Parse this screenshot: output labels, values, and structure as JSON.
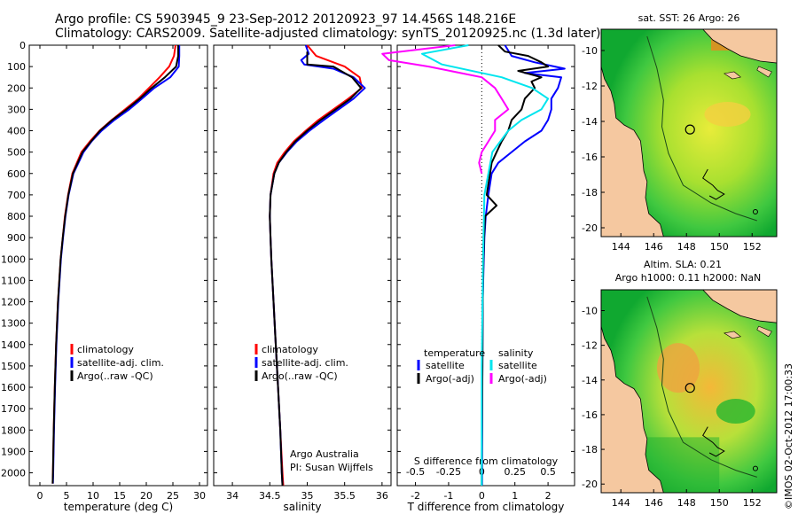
{
  "header": {
    "line1": "Argo profile: CS 5903945_9 23-Sep-2012 20120923_97 14.456S 148.216E",
    "line2": "Climatology: CARS2009. Satellite-adjusted climatology: synTS_20120925.nc (1.3d later)"
  },
  "depth_ticks": [
    0,
    100,
    200,
    300,
    400,
    500,
    600,
    700,
    800,
    900,
    1000,
    1100,
    1200,
    1300,
    1400,
    1500,
    1600,
    1700,
    1800,
    1900,
    2000
  ],
  "colors": {
    "climatology": "#ff0000",
    "satellite": "#0000ff",
    "argo": "#000000",
    "sat_salinity": "#00e5ee",
    "argo_salinity": "#ff00ff"
  },
  "chart_data": [
    {
      "type": "line",
      "xlabel": "temperature (deg C)",
      "xticks": [
        0,
        5,
        10,
        15,
        20,
        25,
        30
      ],
      "xlim": [
        -2,
        31.5
      ],
      "ylim": [
        2060,
        0
      ],
      "legend": {
        "position": "lower-center",
        "entries": [
          "climatology",
          "satellite-adj. clim.",
          "Argo(..raw -QC)"
        ]
      },
      "series": [
        {
          "name": "climatology",
          "color": "#ff0000",
          "depth": [
            0,
            50,
            100,
            150,
            200,
            250,
            300,
            350,
            400,
            450,
            500,
            600,
            700,
            800,
            900,
            1000,
            1200,
            1400,
            1600,
            1800,
            2000,
            2050
          ],
          "values": [
            25.5,
            25.2,
            24.3,
            22.5,
            20.5,
            18.5,
            16.0,
            13.5,
            11.2,
            9.4,
            7.8,
            6.1,
            5.3,
            4.7,
            4.3,
            3.9,
            3.4,
            3.05,
            2.8,
            2.6,
            2.45,
            2.4
          ]
        },
        {
          "name": "satellite-adj. clim.",
          "color": "#0000ff",
          "depth": [
            0,
            50,
            100,
            150,
            200,
            250,
            300,
            350,
            400,
            450,
            500,
            600,
            700,
            800,
            900,
            1000,
            1200,
            1400,
            1600,
            1800,
            2000,
            2050
          ],
          "values": [
            26.2,
            26.2,
            26.1,
            24.5,
            21.5,
            19.2,
            16.8,
            14.0,
            11.6,
            9.7,
            8.2,
            6.3,
            5.4,
            4.8,
            4.35,
            3.95,
            3.45,
            3.1,
            2.85,
            2.65,
            2.5,
            2.45
          ]
        },
        {
          "name": "Argo(..raw -QC)",
          "color": "#000000",
          "depth": [
            0,
            50,
            100,
            150,
            200,
            250,
            300,
            350,
            400,
            450,
            500,
            600,
            700,
            800,
            900,
            1000,
            1200,
            1400,
            1600,
            1800,
            2000,
            2050
          ],
          "values": [
            26.0,
            26.0,
            25.6,
            23.5,
            21.0,
            18.8,
            16.3,
            13.6,
            11.3,
            9.6,
            8.0,
            6.2,
            5.35,
            4.75,
            4.3,
            3.9,
            3.4,
            3.05,
            2.8,
            2.6,
            2.45,
            2.4
          ]
        }
      ]
    },
    {
      "type": "line",
      "xlabel": "salinity",
      "xticks": [
        34,
        34.5,
        35,
        35.5,
        36
      ],
      "xlim": [
        33.75,
        36.12
      ],
      "ylim": [
        2060,
        0
      ],
      "legend": {
        "position": "lower-center",
        "entries": [
          "climatology",
          "satellite-adj. clim.",
          "Argo(..raw -QC)"
        ]
      },
      "annotations": [
        "Argo Australia",
        "PI: Susan Wijffels"
      ],
      "series": [
        {
          "name": "climatology",
          "color": "#ff0000",
          "depth": [
            0,
            50,
            100,
            150,
            200,
            250,
            300,
            350,
            400,
            450,
            500,
            550,
            600,
            700,
            800,
            900,
            1000,
            1200,
            1400,
            1600,
            1800,
            2000,
            2060
          ],
          "values": [
            35.0,
            35.12,
            35.5,
            35.7,
            35.73,
            35.55,
            35.35,
            35.15,
            34.98,
            34.82,
            34.7,
            34.6,
            34.55,
            34.51,
            34.5,
            34.51,
            34.52,
            34.55,
            34.58,
            34.61,
            34.64,
            34.67,
            34.68
          ]
        },
        {
          "name": "satellite-adj. clim.",
          "color": "#0000ff",
          "depth": [
            0,
            40,
            70,
            90,
            110,
            150,
            200,
            250,
            300,
            350,
            400,
            450,
            500,
            550,
            600,
            700,
            800,
            900,
            1000,
            1200,
            1400,
            1600,
            1800,
            2000,
            2060
          ],
          "values": [
            34.98,
            35.02,
            34.92,
            34.96,
            35.35,
            35.62,
            35.77,
            35.62,
            35.42,
            35.22,
            35.03,
            34.86,
            34.73,
            34.62,
            34.56,
            34.51,
            34.5,
            34.51,
            34.52,
            34.55,
            34.58,
            34.61,
            34.64,
            34.66,
            34.67
          ]
        },
        {
          "name": "Argo(..raw -QC)",
          "color": "#000000",
          "depth": [
            30,
            60,
            90,
            100,
            150,
            200,
            250,
            300,
            350,
            400,
            450,
            500,
            550,
            600,
            700,
            800,
            900,
            1000,
            1200,
            1400,
            1600,
            1800,
            2000,
            2060
          ],
          "values": [
            35.0,
            35.0,
            35.0,
            35.35,
            35.6,
            35.72,
            35.58,
            35.38,
            35.18,
            35.0,
            34.84,
            34.72,
            34.62,
            34.56,
            34.51,
            34.5,
            34.51,
            34.52,
            34.55,
            34.58,
            34.61,
            34.64,
            34.66,
            34.67
          ]
        }
      ]
    },
    {
      "type": "line",
      "xlabel": "T difference from climatology",
      "x2label": "S difference from climatology",
      "xticks": [
        -2,
        -1,
        0,
        1,
        2
      ],
      "x2ticks": [
        -0.5,
        -0.25,
        0,
        0.25,
        0.5
      ],
      "x2ticklabels": [
        "-0.5",
        "-0.25",
        "0",
        "0.25",
        "0.5"
      ],
      "xlim": [
        -2.55,
        2.8
      ],
      "ylim": [
        2060,
        0
      ],
      "legend": {
        "position": "lower-center",
        "groups": [
          {
            "title": "temperature",
            "entries": [
              "satellite",
              "Argo(-adj)"
            ]
          },
          {
            "title": "salinity",
            "entries": [
              "satellite",
              "Argo(-adj)"
            ]
          }
        ]
      },
      "series": [
        {
          "name": "satellite",
          "quantity": "temperature",
          "color": "#0000ff",
          "depth": [
            0,
            50,
            80,
            110,
            130,
            150,
            200,
            250,
            300,
            350,
            400,
            450,
            500,
            550,
            600,
            700,
            800,
            900,
            1000,
            1200,
            1500,
            2000,
            2060
          ],
          "values": [
            0.7,
            0.9,
            1.6,
            2.5,
            1.3,
            2.4,
            2.3,
            2.1,
            2.1,
            2.0,
            1.8,
            1.3,
            0.9,
            0.5,
            0.3,
            0.2,
            0.12,
            0.08,
            0.06,
            0.03,
            0.02,
            0.01,
            0.01
          ]
        },
        {
          "name": "Argo(-adj)",
          "quantity": "temperature",
          "color": "#000000",
          "depth": [
            0,
            30,
            50,
            80,
            100,
            120,
            150,
            170,
            200,
            250,
            300,
            350,
            400,
            450,
            500,
            550,
            600,
            700,
            750,
            800,
            900,
            1000,
            1200,
            1500,
            2000,
            2060
          ],
          "values": [
            0.5,
            0.7,
            1.4,
            1.8,
            2.0,
            1.1,
            1.8,
            1.5,
            1.6,
            1.3,
            1.2,
            0.9,
            0.8,
            0.6,
            0.45,
            0.3,
            0.25,
            0.15,
            0.45,
            0.1,
            0.07,
            0.05,
            0.03,
            0.02,
            0.0,
            0.0
          ]
        },
        {
          "name": "satellite",
          "quantity": "salinity",
          "color": "#00e5ee",
          "depth": [
            0,
            40,
            90,
            150,
            200,
            250,
            300,
            350,
            400,
            500,
            700,
            1000,
            1500,
            2000,
            2060
          ],
          "values": [
            -0.1,
            -0.45,
            -0.3,
            0.15,
            0.38,
            0.5,
            0.45,
            0.3,
            0.2,
            0.08,
            0.02,
            0.01,
            0.0,
            0.0,
            0.0
          ]
        },
        {
          "name": "Argo(-adj)",
          "quantity": "salinity",
          "color": "#ff00ff",
          "depth": [
            0,
            40,
            70,
            100,
            150,
            200,
            250,
            300,
            350,
            400,
            450,
            500,
            550,
            600
          ],
          "values": [
            -0.2,
            -0.75,
            -0.7,
            -0.4,
            0.0,
            0.1,
            0.15,
            0.2,
            0.1,
            0.1,
            0.05,
            0.0,
            -0.02,
            0.0
          ]
        }
      ]
    }
  ],
  "maps": [
    {
      "title": "sat. SST: 26 Argo: 26",
      "xticks": [
        144,
        146,
        148,
        150,
        152
      ],
      "yticks": [
        -10,
        -12,
        -14,
        -16,
        -18,
        -20
      ],
      "xlim": [
        142.8,
        153.5
      ],
      "ylim": [
        -20.5,
        -8.8
      ],
      "marker": {
        "lon": 148.216,
        "lat": -14.456
      }
    },
    {
      "title": "Altim. SLA: 0.21",
      "subtitle": "Argo h1000: 0.11 h2000: NaN",
      "xticks": [
        144,
        146,
        148,
        150,
        152
      ],
      "yticks": [
        -10,
        -12,
        -14,
        -16,
        -18,
        -20
      ],
      "xlim": [
        142.8,
        153.5
      ],
      "ylim": [
        -20.5,
        -8.8
      ],
      "marker": {
        "lon": 148.216,
        "lat": -14.456
      }
    }
  ],
  "footer": {
    "stamp": "©IMOS 02-Oct-2012 17:00:33"
  }
}
